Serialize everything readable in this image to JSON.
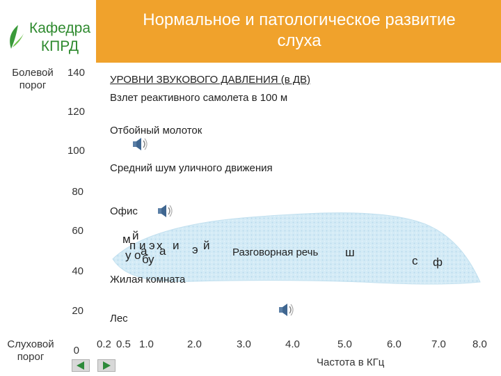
{
  "header": {
    "title": "Нормальное и патологическое развитие\nслуха",
    "banner_color": "#f0a22c",
    "logo_text": "Кафедра\nКПРД",
    "logo_color": "#2f8a2f"
  },
  "y_axis": {
    "top_label": "Болевой\nпорог",
    "bottom_label": "Слуховой\nпорог",
    "ticks": [
      "140",
      "120",
      "100",
      "80",
      "60",
      "40",
      "20",
      "0"
    ]
  },
  "levels": {
    "heading": "УРОВНИ ЗВУКОВОГО ДАВЛЕНИЯ (в ДВ)",
    "items": [
      "Взлет реактивного самолета в 100 м",
      "Отбойный молоток",
      "Средний шум уличного движения",
      "Офис",
      "Разговорная речь",
      "Жилая комната",
      "Лес"
    ]
  },
  "phonemes": [
    "м",
    "й",
    "п",
    "и",
    "а",
    "э",
    "х",
    "а",
    "и",
    "э",
    "й",
    "у",
    "о",
    "б",
    "у",
    "ш",
    "с",
    "ф"
  ],
  "x_axis": {
    "ticks": [
      "0.2",
      "0.5",
      "1.0",
      "2.0",
      "3.0",
      "4.0",
      "5.0",
      "6.0",
      "7.0",
      "8.0"
    ],
    "label": "Частота в КГц"
  },
  "speech_area_color": "#cfe8f5",
  "icons": [
    "speaker-icon",
    "leaf-icon",
    "arrow-left-icon",
    "arrow-right-icon"
  ]
}
